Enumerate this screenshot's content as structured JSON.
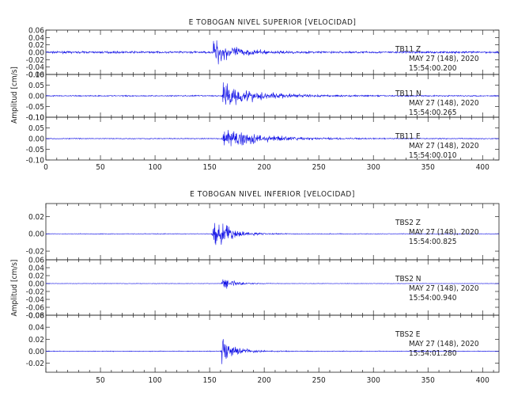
{
  "colors": {
    "trace": "#1010e6",
    "axis": "#222222",
    "background": "#ffffff"
  },
  "chart_data": [
    {
      "type": "line",
      "title": "E TOBOGAN NIVEL SUPERIOR [VELOCIDAD]",
      "ylabel": "Amplitud [cm/s]",
      "xlim": [
        0,
        415
      ],
      "x_ticks": [
        "0",
        "50",
        "100",
        "150",
        "200",
        "250",
        "300",
        "350",
        "400"
      ],
      "x_tick_values": [
        0,
        50,
        100,
        150,
        200,
        250,
        300,
        350,
        400
      ],
      "show_x_tick_labels": true,
      "series": [
        {
          "name": "TB11 Z",
          "station_label": "TB11   Z",
          "date_label": "MAY 27 (148), 2020",
          "time_label": "15:54:00.200",
          "ylim": [
            -0.06,
            0.06
          ],
          "y_ticks": [
            "0.06",
            "0.04",
            "0.02",
            "0.00",
            "-0.02",
            "-0.04",
            "-0.06"
          ],
          "y_tick_values": [
            0.06,
            0.04,
            0.02,
            0.0,
            -0.02,
            -0.04,
            -0.06
          ],
          "noise": 0.004,
          "events": [
            {
              "t": 153,
              "peak": 0.055,
              "decay": 18
            }
          ]
        },
        {
          "name": "TB11 N",
          "station_label": "TB11   N",
          "date_label": "MAY 27 (148), 2020",
          "time_label": "15:54:00.265",
          "ylim": [
            -0.1,
            0.1
          ],
          "y_ticks": [
            "0.10",
            "0.05",
            "0.00",
            "-0.05",
            "-0.10"
          ],
          "y_tick_values": [
            0.1,
            0.05,
            0.0,
            -0.05,
            -0.1
          ],
          "noise": 0.004,
          "events": [
            {
              "t": 162,
              "peak": 0.085,
              "decay": 30
            }
          ]
        },
        {
          "name": "TB11 E",
          "station_label": "TB11   E",
          "date_label": "MAY 27 (148), 2020",
          "time_label": "15:54:00.010",
          "ylim": [
            -0.1,
            0.1
          ],
          "y_ticks": [
            "0.10",
            "0.05",
            "0.00",
            "-0.05",
            "-0.10"
          ],
          "y_tick_values": [
            0.1,
            0.05,
            0.0,
            -0.05,
            -0.1
          ],
          "noise": 0.003,
          "events": [
            {
              "t": 162,
              "peak": 0.075,
              "decay": 32
            }
          ]
        }
      ]
    },
    {
      "type": "line",
      "title": "E TOBOGAN NIVEL INFERIOR [VELOCIDAD]",
      "ylabel": "Amplitud [cm/s]",
      "xlim": [
        0,
        415
      ],
      "x_ticks": [
        "50",
        "100",
        "150",
        "200",
        "250",
        "300",
        "350",
        "400"
      ],
      "x_tick_values": [
        50,
        100,
        150,
        200,
        250,
        300,
        350,
        400
      ],
      "show_x_tick_labels": true,
      "series": [
        {
          "name": "TBS2 Z",
          "station_label": "TBS2   Z",
          "date_label": "MAY 27 (148), 2020",
          "time_label": "15:54:00.825",
          "ylim": [
            -0.03,
            0.035
          ],
          "y_ticks": [
            "0.02",
            "0.00",
            "-0.02"
          ],
          "y_tick_values": [
            0.02,
            0.0,
            -0.02
          ],
          "noise": 0.0005,
          "events": [
            {
              "t": 153,
              "peak": 0.03,
              "decay": 14
            }
          ]
        },
        {
          "name": "TBS2 N",
          "station_label": "TBS2   N",
          "date_label": "MAY 27 (148), 2020",
          "time_label": "15:54:00.940",
          "ylim": [
            -0.08,
            0.06
          ],
          "y_ticks": [
            "0.06",
            "0.04",
            "0.02",
            "0.00",
            "-0.02",
            "-0.04",
            "-0.06",
            "-0.08"
          ],
          "y_tick_values": [
            0.06,
            0.04,
            0.02,
            0.0,
            -0.02,
            -0.04,
            -0.06,
            -0.08
          ],
          "noise": 0.0008,
          "events": [
            {
              "t": 161,
              "peak": 0.03,
              "decay": 10
            }
          ]
        },
        {
          "name": "TBS2 E",
          "station_label": "TBS2   E",
          "date_label": "MAY 27 (148), 2020",
          "time_label": "15:54:01.280",
          "ylim": [
            -0.035,
            0.06
          ],
          "y_ticks": [
            "0.06",
            "0.04",
            "0.02",
            "0.00",
            "-0.02"
          ],
          "y_tick_values": [
            0.06,
            0.04,
            0.02,
            0.0,
            -0.02
          ],
          "noise": 0.0008,
          "events": [
            {
              "t": 161,
              "peak": 0.035,
              "decay": 12
            }
          ]
        }
      ]
    }
  ]
}
